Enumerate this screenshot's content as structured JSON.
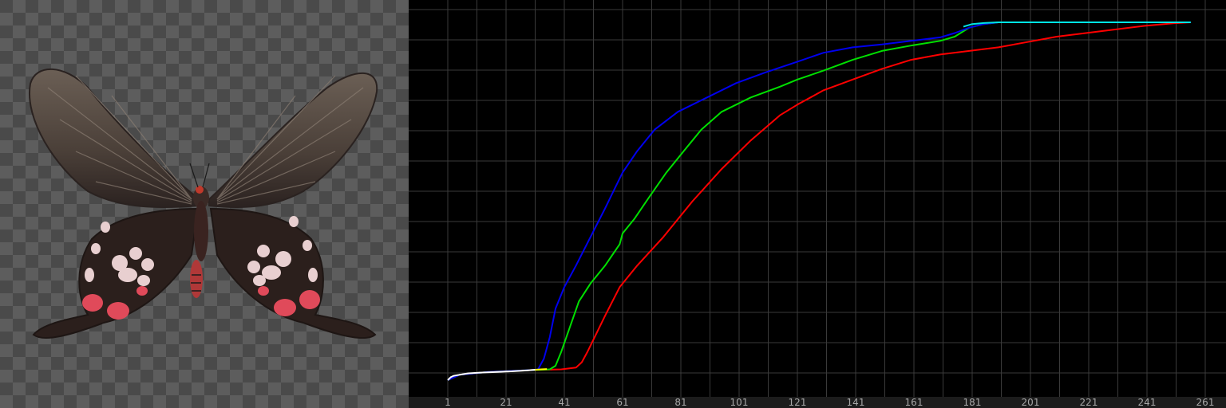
{
  "chart_data": {
    "type": "line",
    "title": "",
    "xlabel": "",
    "ylabel": "",
    "xlim": [
      1,
      261
    ],
    "ylim": [
      0,
      100
    ],
    "x_ticks": [
      "1",
      "21",
      "41",
      "61",
      "81",
      "101",
      "121",
      "141",
      "161",
      "181",
      "201",
      "221",
      "241",
      "261"
    ],
    "grid": true,
    "legend": "none",
    "series": [
      {
        "color": "#ff0000",
        "x": [
          1,
          5,
          15,
          30,
          40,
          45,
          47,
          49,
          52,
          55,
          60,
          66,
          75,
          85,
          95,
          105,
          115,
          121,
          130,
          140,
          150,
          160,
          170,
          180,
          190,
          200,
          210,
          220,
          230,
          240,
          250,
          256
        ],
        "y": [
          0,
          1.5,
          2.3,
          2.8,
          3,
          3.5,
          5,
          8,
          13,
          18,
          26,
          32,
          40,
          50,
          59,
          67,
          74,
          77,
          81,
          84,
          87,
          89.5,
          91,
          92,
          93,
          94.5,
          96,
          97,
          98,
          99,
          99.7,
          100
        ]
      },
      {
        "color": "#00e000",
        "x": [
          1,
          5,
          15,
          30,
          36,
          38,
          40,
          43,
          46,
          50,
          55,
          60,
          61,
          65,
          70,
          76,
          82,
          88,
          95,
          105,
          115,
          121,
          130,
          140,
          150,
          160,
          170,
          175,
          180,
          185,
          190,
          200,
          256
        ],
        "y": [
          0,
          1.5,
          2.3,
          2.8,
          3,
          4,
          8,
          15,
          22,
          27,
          32,
          38,
          41,
          45,
          51,
          58,
          64,
          70,
          75,
          79,
          82,
          84,
          86.5,
          89.5,
          92,
          93.5,
          94.8,
          96,
          98.5,
          99.5,
          100,
          100,
          100
        ]
      },
      {
        "color": "#0000ee",
        "x": [
          1,
          5,
          15,
          30,
          32,
          34,
          36,
          38,
          41,
          45,
          50,
          55,
          58,
          61,
          66,
          72,
          80,
          90,
          100,
          110,
          121,
          130,
          140,
          150,
          160,
          170,
          175,
          180,
          185,
          190,
          200,
          256
        ],
        "y": [
          0,
          1.5,
          2.3,
          2.8,
          3,
          6,
          12,
          20,
          26,
          32,
          40,
          48,
          53,
          58,
          64,
          70,
          75,
          79,
          83,
          86,
          89,
          91.5,
          93,
          93.8,
          94.8,
          95.8,
          97,
          98.5,
          99.5,
          100,
          100,
          100
        ]
      },
      {
        "color": "#ffffff",
        "x": [
          1,
          2,
          3,
          5,
          8,
          12,
          18,
          24,
          28,
          31
        ],
        "y": [
          0,
          0.8,
          1.2,
          1.5,
          1.9,
          2.1,
          2.3,
          2.5,
          2.7,
          2.9
        ]
      },
      {
        "color": "#ffff00",
        "x": [
          31,
          33,
          35
        ],
        "y": [
          2.9,
          3.0,
          3.1
        ]
      },
      {
        "color": "#00e5e5",
        "x": [
          178,
          181,
          185,
          190,
          200,
          220,
          256
        ],
        "y": [
          98.8,
          99.5,
          99.8,
          100,
          100,
          100,
          100
        ]
      }
    ]
  }
}
